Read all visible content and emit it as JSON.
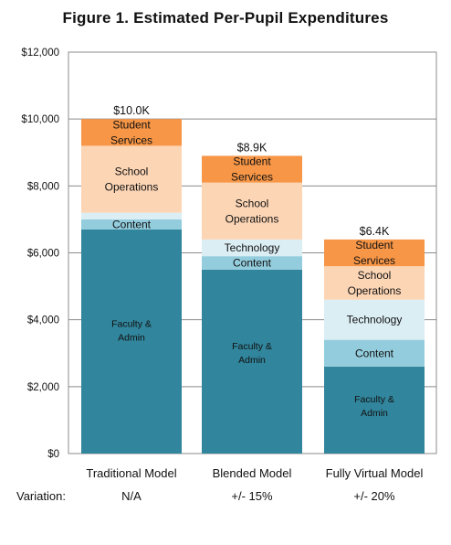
{
  "chart_data": {
    "type": "bar",
    "stacked": true,
    "title": "Figure 1. Estimated Per-Pupil Expenditures",
    "xlabel": "",
    "ylabel": "",
    "ylim": [
      0,
      12000
    ],
    "yticks": [
      0,
      2000,
      4000,
      6000,
      8000,
      10000,
      12000
    ],
    "ytick_labels": [
      "$0",
      "$2,000",
      "$4,000",
      "$6,000",
      "$8,000",
      "$10,000",
      "$12,000"
    ],
    "grid": true,
    "categories": [
      "Traditional Model",
      "Blended Model",
      "Fully Virtual Model"
    ],
    "totals": [
      "$10.0K",
      "$8.9K",
      "$6.4K"
    ],
    "variation_label": "Variation:",
    "variation": [
      "N/A",
      "+/- 15%",
      "+/- 20%"
    ],
    "series": [
      {
        "name": "Faculty & Admin",
        "color": "#31859c",
        "values": [
          6700,
          5500,
          2600
        ],
        "labels": [
          [
            "Faculty &",
            "Admin"
          ],
          [
            "Faculty &",
            "Admin"
          ],
          [
            "Faculty &",
            "Admin"
          ]
        ]
      },
      {
        "name": "Content",
        "color": "#93cddd",
        "values": [
          300,
          400,
          800
        ],
        "labels": [
          [
            "Content"
          ],
          [
            "Content"
          ],
          [
            "Content"
          ]
        ]
      },
      {
        "name": "Technology",
        "color": "#dbeef4",
        "values": [
          200,
          500,
          1200
        ],
        "labels": [
          [],
          [
            "Technology"
          ],
          [
            "Technology"
          ]
        ]
      },
      {
        "name": "School Operations",
        "color": "#fcd5b5",
        "values": [
          2000,
          1700,
          1000
        ],
        "labels": [
          [
            "School",
            "Operations"
          ],
          [
            "School",
            "Operations"
          ],
          [
            "School",
            "Operations"
          ]
        ]
      },
      {
        "name": "Student Services",
        "color": "#f79646",
        "values": [
          800,
          800,
          800
        ],
        "labels": [
          [
            "Student",
            "Services"
          ],
          [
            "Student",
            "Services"
          ],
          [
            "Student",
            "Services"
          ]
        ]
      }
    ]
  }
}
